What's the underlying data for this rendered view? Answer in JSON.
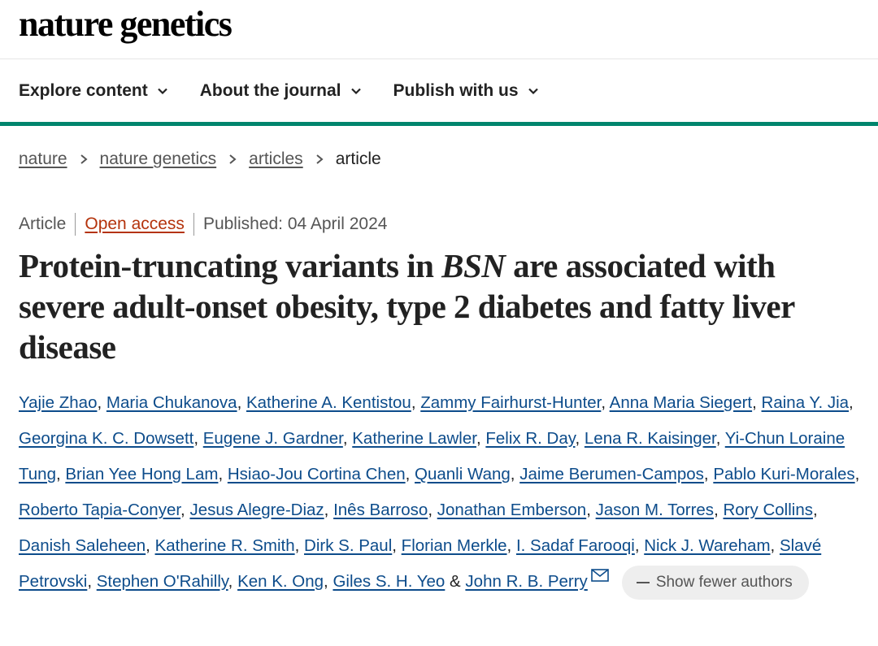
{
  "masthead": {
    "logo": "nature genetics"
  },
  "nav": {
    "items": [
      {
        "label": "Explore content",
        "icon": "chevron-down-icon"
      },
      {
        "label": "About the journal",
        "icon": "chevron-down-icon"
      },
      {
        "label": "Publish with us",
        "icon": "chevron-down-icon"
      }
    ]
  },
  "breadcrumb": {
    "items": [
      "nature",
      "nature genetics",
      "articles"
    ],
    "current": "article"
  },
  "meta": {
    "type": "Article",
    "access": "Open access",
    "published": "Published: 04 April 2024"
  },
  "title": {
    "part1": "Protein-truncating variants in ",
    "gene": "BSN",
    "part2": " are associated with severe adult-onset obesity, type 2 diabetes and fatty liver disease"
  },
  "authors": [
    "Yajie Zhao",
    "Maria Chukanova",
    "Katherine A. Kentistou",
    "Zammy Fairhurst-Hunter",
    "Anna Maria Siegert",
    "Raina Y. Jia",
    "Georgina K. C. Dowsett",
    "Eugene J. Gardner",
    "Katherine Lawler",
    "Felix R. Day",
    "Lena R. Kaisinger",
    "Yi-Chun Loraine Tung",
    "Brian Yee Hong Lam",
    "Hsiao-Jou Cortina Chen",
    "Quanli Wang",
    "Jaime Berumen-Campos",
    "Pablo Kuri-Morales",
    "Roberto Tapia-Conyer",
    "Jesus Alegre-Diaz",
    "Inês Barroso",
    "Jonathan Emberson",
    "Jason M. Torres",
    "Rory Collins",
    "Danish Saleheen",
    "Katherine R. Smith",
    "Dirk S. Paul",
    "Florian Merkle",
    "I. Sadaf Farooqi",
    "Nick J. Wareham",
    "Slavé Petrovski",
    "Stephen O'Rahilly",
    "Ken K. Ong",
    "Giles S. H. Yeo",
    "John R. B. Perry"
  ],
  "authors_sep": ", ",
  "authors_last_sep": " & ",
  "show_fewer_label": "Show fewer authors",
  "colors": {
    "accent_green": "#00856d",
    "open_access": "#b4330c",
    "author_link": "#0d4c8b"
  }
}
